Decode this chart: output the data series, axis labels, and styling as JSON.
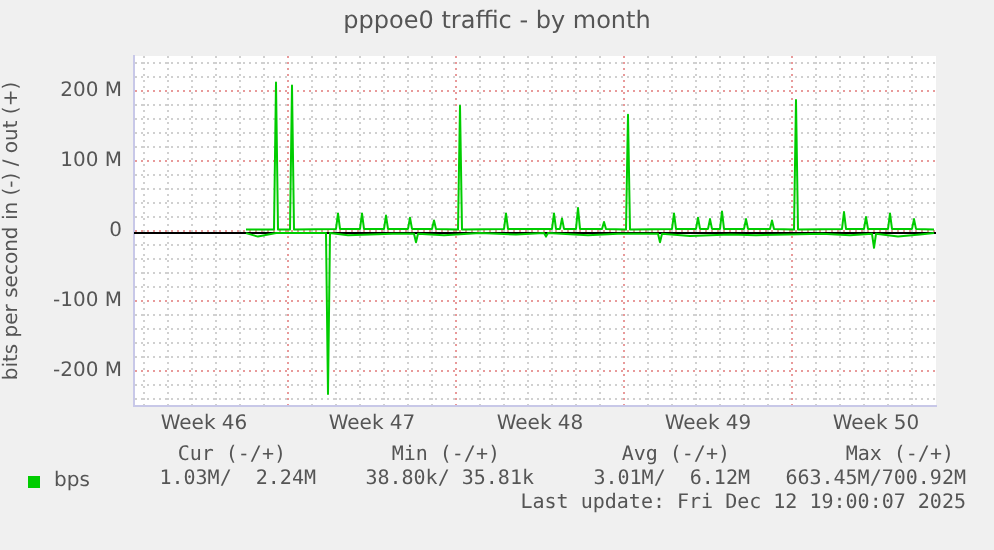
{
  "chart_data": {
    "type": "line",
    "title": "pppoe0 traffic - by month",
    "ylabel": "bits per second in (-) / out (+)",
    "xlim": [
      "2025-11-10T14:00",
      "2025-12-14T00:00"
    ],
    "ylim": [
      -250,
      250
    ],
    "xticks": [
      {
        "value": "2025-11-13T12:00",
        "label": "Week 46"
      },
      {
        "value": "2025-11-20T12:00",
        "label": "Week 47"
      },
      {
        "value": "2025-11-27T12:00",
        "label": "Week 48"
      },
      {
        "value": "2025-12-04T12:00",
        "label": "Week 49"
      },
      {
        "value": "2025-12-11T12:00",
        "label": "Week 50"
      },
      {
        "value": "2025-11-11",
        "label": null
      },
      {
        "value": "2025-11-12",
        "label": null
      },
      {
        "value": "2025-11-13",
        "label": null
      },
      {
        "value": "2025-11-14",
        "label": null
      },
      {
        "value": "2025-11-15",
        "label": null
      },
      {
        "value": "2025-11-16",
        "label": null
      },
      {
        "value": "2025-11-17",
        "label": null
      },
      {
        "value": "2025-11-18",
        "label": null
      },
      {
        "value": "2025-11-19",
        "label": null
      },
      {
        "value": "2025-11-20",
        "label": null
      },
      {
        "value": "2025-11-21",
        "label": null
      },
      {
        "value": "2025-11-22",
        "label": null
      },
      {
        "value": "2025-11-23",
        "label": null
      },
      {
        "value": "2025-11-24",
        "label": null
      },
      {
        "value": "2025-11-25",
        "label": null
      },
      {
        "value": "2025-11-26",
        "label": null
      },
      {
        "value": "2025-11-27",
        "label": null
      },
      {
        "value": "2025-11-28",
        "label": null
      },
      {
        "value": "2025-11-29",
        "label": null
      },
      {
        "value": "2025-11-30",
        "label": null
      },
      {
        "value": "2025-12-01",
        "label": null
      },
      {
        "value": "2025-12-02",
        "label": null
      },
      {
        "value": "2025-12-03",
        "label": null
      },
      {
        "value": "2025-12-04",
        "label": null
      },
      {
        "value": "2025-12-05",
        "label": null
      },
      {
        "value": "2025-12-06",
        "label": null
      },
      {
        "value": "2025-12-07",
        "label": null
      },
      {
        "value": "2025-12-08",
        "label": null
      },
      {
        "value": "2025-12-09",
        "label": null
      },
      {
        "value": "2025-12-10",
        "label": null
      },
      {
        "value": "2025-12-11",
        "label": null
      },
      {
        "value": "2025-12-12",
        "label": null
      },
      {
        "value": "2025-12-13",
        "label": null
      }
    ],
    "yticks": [
      {
        "value": -240,
        "label": null
      },
      {
        "value": -220,
        "label": null
      },
      {
        "value": -200,
        "label": "-200 M"
      },
      {
        "value": -180,
        "label": null
      },
      {
        "value": -160,
        "label": null
      },
      {
        "value": -140,
        "label": null
      },
      {
        "value": -120,
        "label": null
      },
      {
        "value": -100,
        "label": "-100 M"
      },
      {
        "value": -80,
        "label": null
      },
      {
        "value": -60,
        "label": null
      },
      {
        "value": -40,
        "label": null
      },
      {
        "value": -20,
        "label": null
      },
      0,
      {
        "value": 20,
        "label": null
      },
      {
        "value": 40,
        "label": null
      },
      {
        "value": 60,
        "label": null
      },
      {
        "value": 80,
        "label": null
      },
      {
        "value": 100,
        "label": "100 M"
      },
      {
        "value": 120,
        "label": null
      },
      {
        "value": 140,
        "label": null
      },
      {
        "value": 160,
        "label": null
      },
      {
        "value": 180,
        "label": null
      },
      {
        "value": 200,
        "label": "200 M"
      },
      {
        "value": 220,
        "label": null
      },
      {
        "value": 240,
        "label": null
      }
    ],
    "grid": true,
    "legend": "bottom left",
    "marker": "none",
    "line_style": "solid",
    "series": [
      {
        "name": "bps",
        "color": "#00cc00",
        "x": [
          "2025-11-15T06:00",
          "2025-11-16T10:00",
          "2025-11-16T12:00",
          "2025-11-16T14:00",
          "2025-11-17T02:00",
          "2025-11-17T04:00",
          "2025-11-17T06:00",
          "2025-11-19T00:00",
          "2025-11-19T02:00",
          "2025-11-19T04:00",
          "2025-11-20T00:00",
          "2025-11-20T02:00",
          "2025-11-20T04:00",
          "2025-11-21T00:00",
          "2025-11-21T02:00",
          "2025-11-21T04:00",
          "2025-11-22T00:00",
          "2025-11-22T02:00",
          "2025-11-22T04:00",
          "2025-11-23T00:00",
          "2025-11-23T02:00",
          "2025-11-23T04:00",
          "2025-11-24T02:00",
          "2025-11-24T04:00",
          "2025-11-24T06:00",
          "2025-11-26T00:00",
          "2025-11-26T02:00",
          "2025-11-26T04:00",
          "2025-11-28T00:00",
          "2025-11-28T02:00",
          "2025-11-28T04:00",
          "2025-11-28T08:00",
          "2025-11-28T10:00",
          "2025-11-28T12:00",
          "2025-11-29T00:00",
          "2025-11-29T02:00",
          "2025-11-29T04:00",
          "2025-11-30T02:00",
          "2025-11-30T04:00",
          "2025-11-30T06:00",
          "2025-12-01T02:00",
          "2025-12-01T04:00",
          "2025-12-01T06:00",
          "2025-12-03T00:00",
          "2025-12-03T02:00",
          "2025-12-03T04:00",
          "2025-12-04T00:00",
          "2025-12-04T02:00",
          "2025-12-04T04:00",
          "2025-12-04T12:00",
          "2025-12-04T14:00",
          "2025-12-04T16:00",
          "2025-12-05T00:00",
          "2025-12-05T02:00",
          "2025-12-05T04:00",
          "2025-12-06T00:00",
          "2025-12-06T02:00",
          "2025-12-06T04:00",
          "2025-12-07T02:00",
          "2025-12-07T04:00",
          "2025-12-07T06:00",
          "2025-12-08T02:00",
          "2025-12-08T04:00",
          "2025-12-08T06:00",
          "2025-12-10T02:00",
          "2025-12-10T04:00",
          "2025-12-10T06:00",
          "2025-12-11T00:00",
          "2025-12-11T02:00",
          "2025-12-11T04:00",
          "2025-12-12T00:00",
          "2025-12-12T02:00",
          "2025-12-12T04:00",
          "2025-12-13T00:00",
          "2025-12-13T02:00",
          "2025-12-13T04:00",
          "2025-12-13T22:00"
        ],
        "values": [
          2,
          2,
          212,
          2,
          2,
          208,
          2,
          3,
          25,
          3,
          3,
          25,
          3,
          3,
          22,
          3,
          3,
          19,
          3,
          3,
          15,
          3,
          2,
          179,
          2,
          3,
          25,
          3,
          3,
          25,
          3,
          3,
          18,
          3,
          3,
          33,
          3,
          3,
          13,
          3,
          2,
          166,
          2,
          3,
          25,
          3,
          3,
          19,
          3,
          3,
          17,
          3,
          3,
          28,
          3,
          3,
          17,
          3,
          3,
          15,
          3,
          2,
          187,
          2,
          3,
          27,
          3,
          3,
          20,
          3,
          3,
          25,
          3,
          3,
          17,
          3,
          2
        ]
      },
      {
        "color": "#00cc00",
        "x": [
          "2025-11-15T06:00",
          "2025-11-15T18:00",
          "2025-11-16T12:00",
          "2025-11-17T12:00",
          "2025-11-18T14:00",
          "2025-11-18T16:00",
          "2025-11-18T18:00",
          "2025-11-19T12:00",
          "2025-11-20T10:00",
          "2025-11-21T08:00",
          "2025-11-22T06:00",
          "2025-11-22T08:00",
          "2025-11-22T10:00",
          "2025-11-23T12:00",
          "2025-11-25T00:00",
          "2025-11-26T12:00",
          "2025-11-27T16:00",
          "2025-11-27T18:00",
          "2025-11-27T20:00",
          "2025-11-29T12:00",
          "2025-11-30T18:00",
          "2025-12-02T10:00",
          "2025-12-02T12:00",
          "2025-12-02T14:00",
          "2025-12-03T18:00",
          "2025-12-05T10:00",
          "2025-12-06T12:00",
          "2025-12-07T20:00",
          "2025-12-09T06:00",
          "2025-12-10T10:00",
          "2025-12-11T08:00",
          "2025-12-11T10:00",
          "2025-12-11T12:00",
          "2025-12-12T10:00",
          "2025-12-13T08:00",
          "2025-12-13T22:00"
        ],
        "values": [
          -3,
          -8,
          -3,
          -3,
          -3,
          -233,
          -3,
          -6,
          -5,
          -4,
          -4,
          -16,
          -4,
          -6,
          -3,
          -5,
          -3,
          -8,
          -3,
          -6,
          -4,
          -4,
          -16,
          -4,
          -7,
          -5,
          -6,
          -5,
          -4,
          -6,
          -4,
          -24,
          -4,
          -8,
          -5,
          -3
        ]
      }
    ],
    "ref_lines": [
      {
        "axis": "y",
        "value": 0,
        "color": "#000000"
      }
    ],
    "annotations": [
      "Cur (-/+)",
      "Min (-/+)",
      "Avg (-/+)",
      "Max (-/+)",
      "1.03M/  2.24M",
      "38.80k/ 35.81k",
      "3.01M/  6.12M",
      "663.45M/700.92M",
      "Last update: Fri Dec 12 19:00:07 2025"
    ]
  }
}
